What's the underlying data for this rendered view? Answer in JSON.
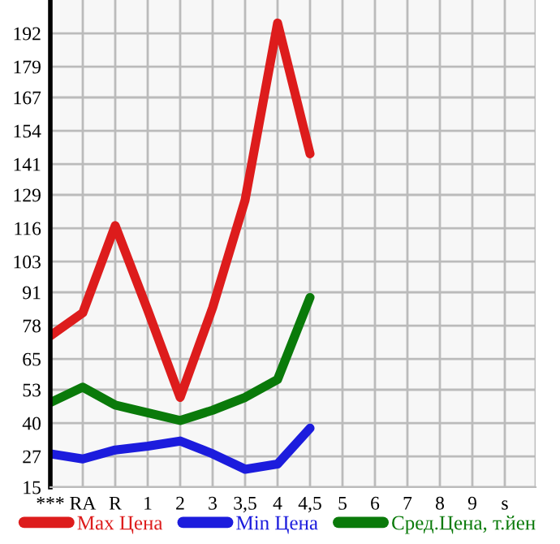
{
  "chart_data": {
    "type": "line",
    "categories": [
      "***",
      "RA",
      "R",
      "1",
      "2",
      "3",
      "3,5",
      "4",
      "4,5",
      "5",
      "6",
      "7",
      "8",
      "9",
      "s"
    ],
    "series": [
      {
        "name": "Max Цена",
        "color": "#dd1c1c",
        "values": [
          74,
          83,
          117,
          84,
          50,
          85,
          127,
          196,
          145,
          null,
          null,
          null,
          null,
          null,
          null
        ]
      },
      {
        "name": "Min Цена",
        "color": "#1c1cdd",
        "values": [
          28,
          26,
          29.5,
          31,
          33,
          28,
          22,
          24,
          38,
          null,
          null,
          null,
          null,
          null,
          null
        ]
      },
      {
        "name": "Сред.Цена, т.йен",
        "color": "#0a7a0a",
        "values": [
          48,
          54,
          47,
          44,
          41,
          45,
          50,
          57,
          89,
          null,
          null,
          null,
          null,
          null,
          null
        ]
      }
    ],
    "ylim": [
      15,
      205
    ],
    "yticks": [
      15,
      27,
      40,
      53,
      65,
      78,
      91,
      103,
      116,
      129,
      141,
      154,
      167,
      179,
      192
    ],
    "grid": true,
    "legend": "bottom",
    "marker": "none",
    "line_style": "solid"
  }
}
